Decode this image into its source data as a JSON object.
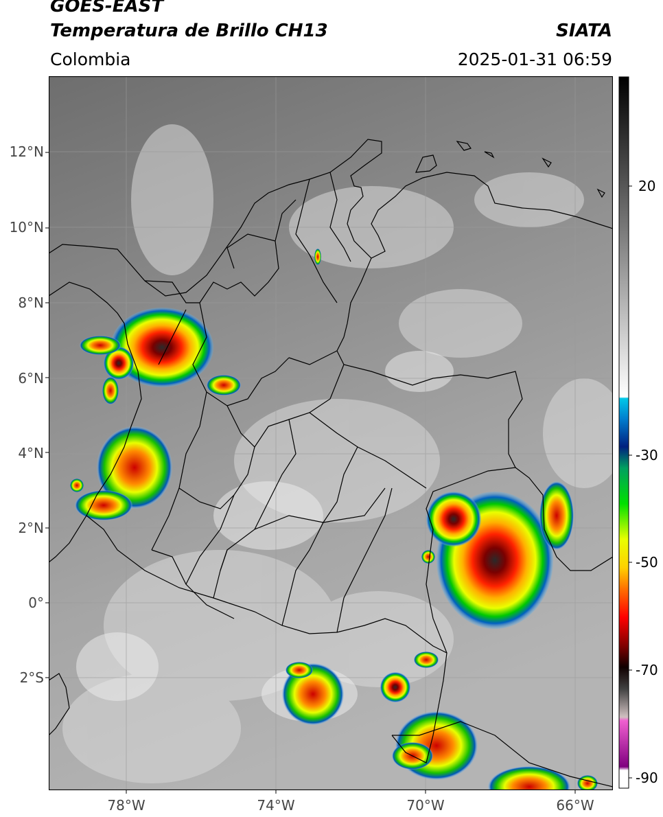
{
  "header": {
    "satellite": "GOES-EAST",
    "product": "Temperatura de Brillo CH13",
    "organization": "SIATA",
    "region": "Colombia",
    "timestamp": "2025-01-31 06:59"
  },
  "map": {
    "lat_range": [
      -5,
      14
    ],
    "lon_range": [
      -80,
      -65
    ],
    "lat_ticks": [
      "12°N",
      "10°N",
      "8°N",
      "6°N",
      "4°N",
      "2°N",
      "0°",
      "2°S"
    ],
    "lon_ticks": [
      "78°W",
      "74°W",
      "70°W",
      "66°W"
    ]
  },
  "colorbar": {
    "range": [
      -92,
      32
    ],
    "ticks": [
      "20",
      "-30",
      "-50",
      "-70",
      "-90"
    ]
  }
}
